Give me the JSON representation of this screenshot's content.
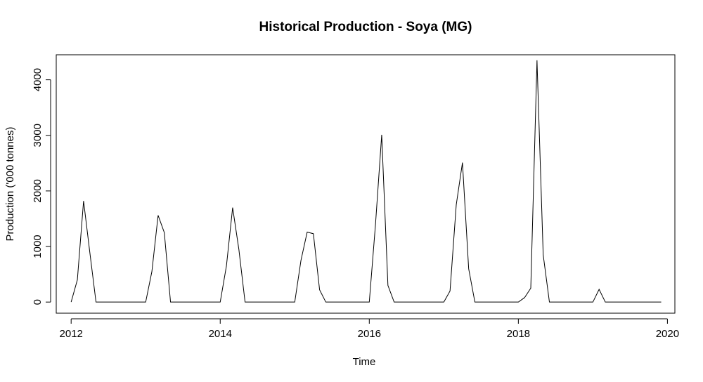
{
  "chart_data": {
    "type": "line",
    "title": "Historical Production - Soya (MG)",
    "xlabel": "Time",
    "ylabel": "Production ('000 tonnes)",
    "xlim": [
      2011.8,
      2020.1
    ],
    "ylim": [
      -200,
      4450
    ],
    "x_ticks": [
      2012,
      2014,
      2016,
      2018,
      2020
    ],
    "y_ticks": [
      0,
      1000,
      2000,
      3000,
      4000
    ],
    "x_start": 2012,
    "frequency": 12,
    "series": [
      {
        "values": [
          0,
          400,
          1820,
          900,
          0,
          0,
          0,
          0,
          0,
          0,
          0,
          0,
          0,
          550,
          1560,
          1250,
          0,
          0,
          0,
          0,
          0,
          0,
          0,
          0,
          0,
          650,
          1700,
          950,
          0,
          0,
          0,
          0,
          0,
          0,
          0,
          0,
          0,
          750,
          1260,
          1230,
          220,
          0,
          0,
          0,
          0,
          0,
          0,
          0,
          0,
          1400,
          3010,
          300,
          0,
          0,
          0,
          0,
          0,
          0,
          0,
          0,
          0,
          200,
          1750,
          2510,
          600,
          0,
          0,
          0,
          0,
          0,
          0,
          0,
          0,
          80,
          250,
          4350,
          850,
          0,
          0,
          0,
          0,
          0,
          0,
          0,
          0,
          230,
          0,
          0,
          0,
          0,
          0,
          0,
          0,
          0,
          0,
          0
        ]
      }
    ],
    "colors": {
      "line": "#000000"
    }
  }
}
